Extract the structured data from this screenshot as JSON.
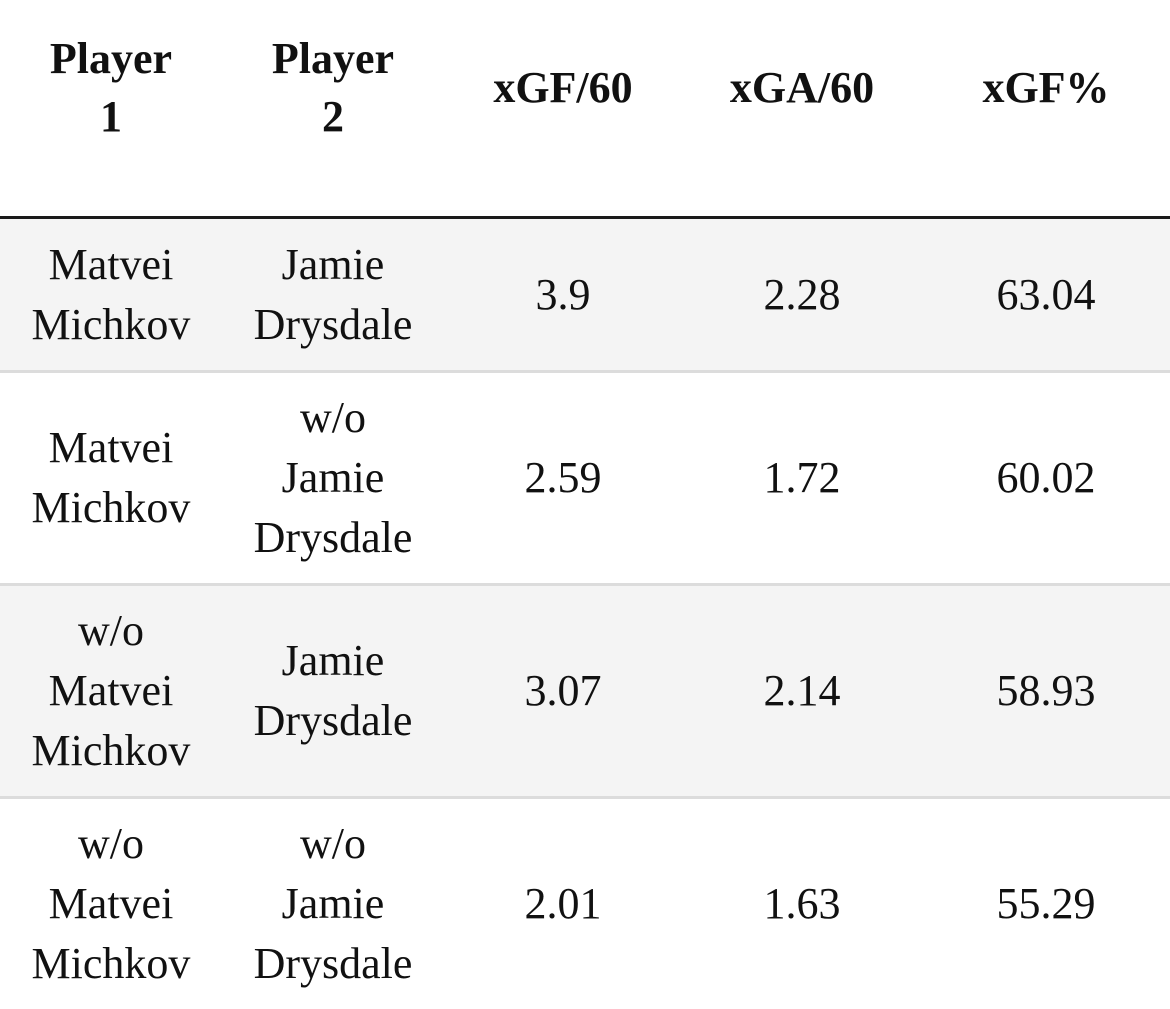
{
  "table": {
    "headers": [
      [
        "Player",
        "1"
      ],
      [
        "Player",
        "2"
      ],
      [
        "xGF/60"
      ],
      [
        "xGA/60"
      ],
      [
        "xGF%"
      ]
    ],
    "rows": [
      {
        "player1": [
          "Matvei",
          "Michkov"
        ],
        "player2": [
          "Jamie",
          "Drysdale"
        ],
        "xgf60": "3.9",
        "xga60": "2.28",
        "xgf_pct": "63.04"
      },
      {
        "player1": [
          "Matvei",
          "Michkov"
        ],
        "player2": [
          "w/o",
          "Jamie",
          "Drysdale"
        ],
        "xgf60": "2.59",
        "xga60": "1.72",
        "xgf_pct": "60.02"
      },
      {
        "player1": [
          "w/o",
          "Matvei",
          "Michkov"
        ],
        "player2": [
          "Jamie",
          "Drysdale"
        ],
        "xgf60": "3.07",
        "xga60": "2.14",
        "xgf_pct": "58.93"
      },
      {
        "player1": [
          "w/o",
          "Matvei",
          "Michkov"
        ],
        "player2": [
          "w/o",
          "Jamie",
          "Drysdale"
        ],
        "xgf60": "2.01",
        "xga60": "1.63",
        "xgf_pct": "55.29"
      }
    ]
  }
}
